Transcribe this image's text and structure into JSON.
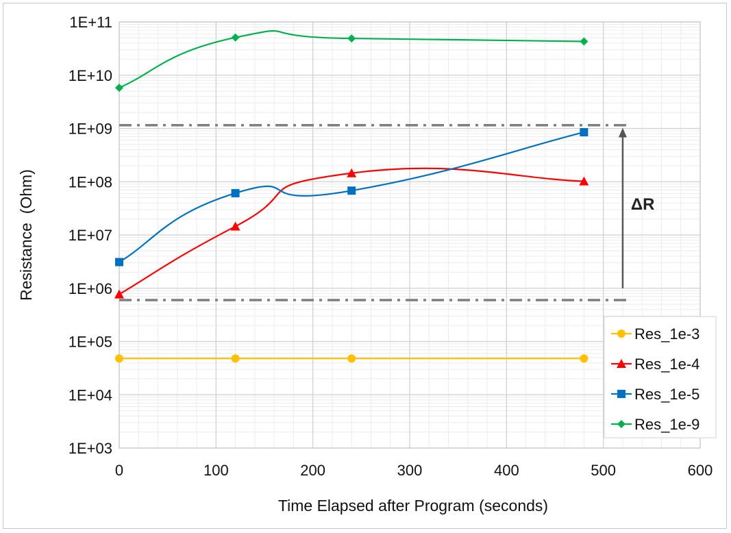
{
  "chart_data": {
    "type": "line",
    "title": "",
    "xlabel": "Time Elapsed after Program (seconds)",
    "ylabel": "Resistance  (Ohm)",
    "xlim": [
      0,
      600
    ],
    "ylim": [
      1000,
      100000000000
    ],
    "y_scale": "log",
    "x_ticks": [
      0,
      100,
      200,
      300,
      400,
      500,
      600
    ],
    "x_tick_labels": [
      "0",
      "100",
      "200",
      "300",
      "400",
      "500",
      "600"
    ],
    "y_ticks": [
      1000,
      10000,
      100000,
      1000000,
      10000000,
      100000000,
      1000000000,
      10000000000,
      100000000000
    ],
    "y_tick_labels": [
      "1E+03",
      "1E+04",
      "1E+05",
      "1E+06",
      "1E+07",
      "1E+08",
      "1E+09",
      "1E+10",
      "1E+11"
    ],
    "grid": "major and minor",
    "legend_position": "bottom-right",
    "series": [
      {
        "name": "Res_1e-3",
        "color": "#FFC000",
        "marker": "circle",
        "x": [
          0,
          120,
          240,
          480
        ],
        "y": [
          48000,
          48000,
          48000,
          48000
        ]
      },
      {
        "name": "Res_1e-4",
        "color": "#FF0000",
        "marker": "triangle",
        "x": [
          0,
          120,
          240,
          480
        ],
        "y": [
          770000,
          14500000,
          145000000,
          102000000
        ]
      },
      {
        "name": "Res_1e-5",
        "color": "#0070C0",
        "marker": "square",
        "x": [
          0,
          120,
          240,
          480
        ],
        "y": [
          3100000,
          61000000,
          68000000,
          850000000
        ]
      },
      {
        "name": "Res_1e-9",
        "color": "#00B050",
        "marker": "diamond",
        "x": [
          0,
          120,
          240,
          480
        ],
        "y": [
          5800000000,
          51000000000,
          49000000000,
          43000000000
        ]
      }
    ],
    "annotations": {
      "upper_dashdot_y": 1150000000,
      "lower_dashdot_y": 600000,
      "dashdot_x_end": 525,
      "arrow_x": 520,
      "arrow_from_y": 1000000,
      "arrow_to_y": 1000000000,
      "arrow_label": "ΔR",
      "line_color": "#7f7f7f"
    }
  }
}
